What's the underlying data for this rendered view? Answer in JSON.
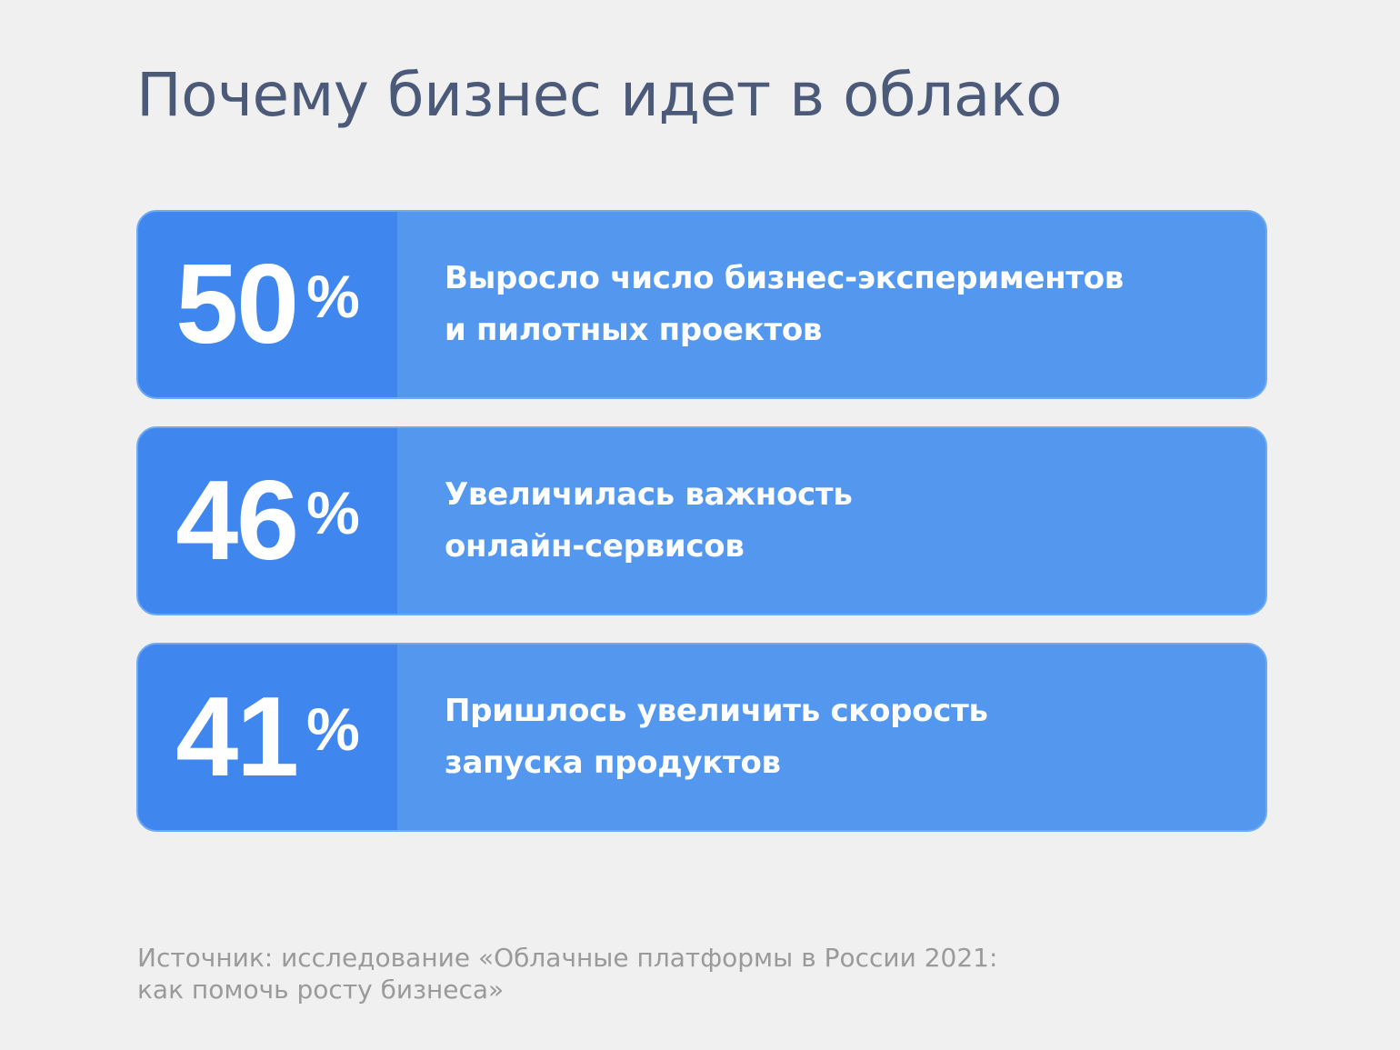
{
  "title": "Почему бизнес идет в облако",
  "stats": [
    {
      "value": "50",
      "unit": "%",
      "label": "Выросло число бизнес-экспериментов\nи пилотных проектов"
    },
    {
      "value": "46",
      "unit": "%",
      "label": "Увеличилась важность\nонлайн-сервисов"
    },
    {
      "value": "41",
      "unit": "%",
      "label": "Пришлось увеличить скорость\nзапуска продуктов"
    }
  ],
  "source": "Источник: исследование «Облачные платформы в России 2021:\nкак помочь росту бизнеса»",
  "colors": {
    "background": "#f0f0f0",
    "title": "#4b5a78",
    "value_block": "#3f87ef",
    "card": "#5398ee",
    "source": "#9a9a9a"
  }
}
